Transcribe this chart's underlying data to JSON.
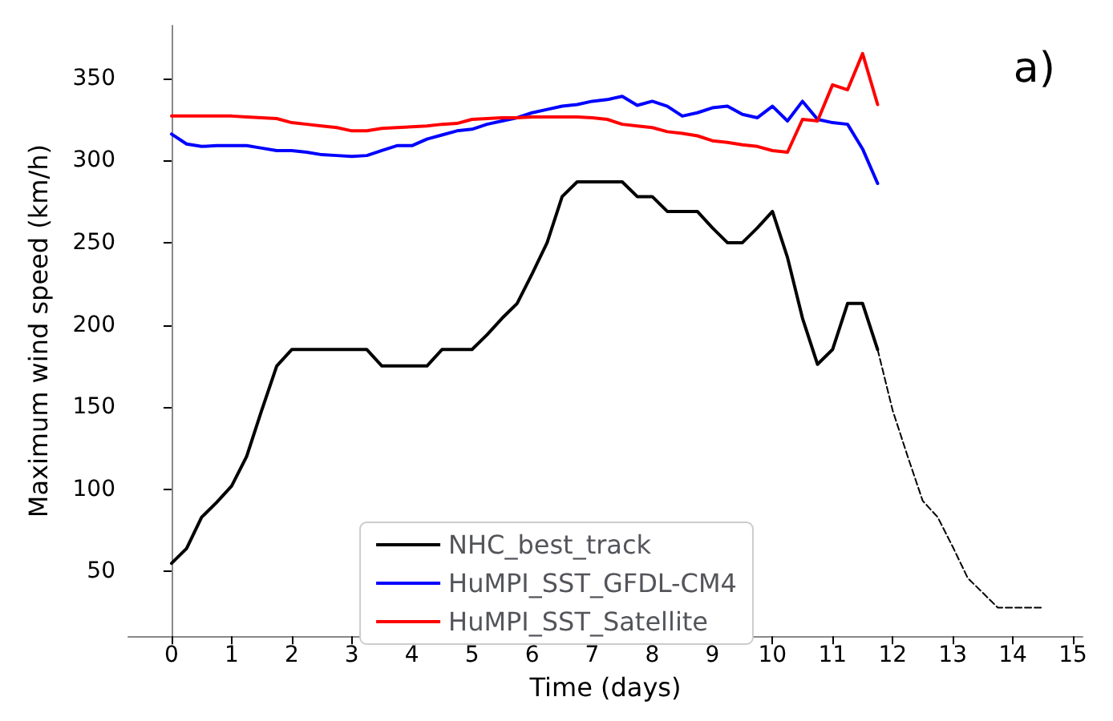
{
  "chart_data": {
    "type": "line",
    "xlabel": "Time (days)",
    "ylabel": "Maximum wind speed (km/h)",
    "annotations": [
      "a)"
    ],
    "xlim": [
      -0.72,
      15.16
    ],
    "xticks": [
      0,
      1,
      2,
      3,
      4,
      5,
      6,
      7,
      8,
      9,
      10,
      11,
      12,
      13,
      14,
      15
    ],
    "ylim": [
      10.6,
      382
    ],
    "yticks": [
      50,
      100,
      150,
      200,
      250,
      300,
      350
    ],
    "grid": false,
    "legend": "bottom",
    "marker": "none",
    "series": [
      {
        "name": "NHC_best_track",
        "color": "#000000",
        "line_style": "solid",
        "x": [
          0,
          0.25,
          0.5,
          0.75,
          1,
          1.25,
          1.5,
          1.75,
          2,
          2.25,
          2.5,
          2.75,
          3,
          3.25,
          3.5,
          3.75,
          4,
          4.25,
          4.5,
          4.75,
          5,
          5.25,
          5.5,
          5.75,
          6,
          6.25,
          6.5,
          6.75,
          7,
          7.25,
          7.5,
          7.75,
          8,
          8.25,
          8.5,
          8.75,
          9,
          9.25,
          9.5,
          9.75,
          10,
          10.25,
          10.5,
          10.75,
          11,
          11.25,
          11.5,
          11.75
        ],
        "values": [
          55,
          64,
          83,
          92,
          102,
          120,
          148,
          175,
          185,
          185,
          185,
          185,
          185,
          185,
          175,
          175,
          175,
          175,
          185,
          185,
          185,
          194,
          204,
          213,
          231,
          250,
          278,
          287,
          287,
          287,
          287,
          278,
          278,
          269,
          269,
          269,
          259,
          250,
          250,
          259,
          269,
          241,
          204,
          176,
          185,
          213,
          213,
          185
        ]
      },
      {
        "name": "HuMPI_SST_GFDL-CM4",
        "color": "#0000ff",
        "line_style": "solid",
        "x": [
          0,
          0.25,
          0.5,
          0.75,
          1,
          1.25,
          1.5,
          1.75,
          2,
          2.25,
          2.5,
          2.75,
          3,
          3.25,
          3.5,
          3.75,
          4,
          4.25,
          4.5,
          4.75,
          5,
          5.25,
          5.5,
          5.75,
          6,
          6.25,
          6.5,
          6.75,
          7,
          7.25,
          7.5,
          7.75,
          8,
          8.25,
          8.5,
          8.75,
          9,
          9.25,
          9.5,
          9.75,
          10,
          10.25,
          10.5,
          10.75,
          11,
          11.25,
          11.5,
          11.75
        ],
        "values": [
          316,
          310,
          308.5,
          309,
          309,
          309,
          307.5,
          306,
          306,
          305,
          303.5,
          303,
          302.5,
          303,
          306,
          309,
          309,
          313,
          315.5,
          318,
          319,
          322,
          324,
          326,
          329,
          331,
          333,
          334,
          336,
          337,
          339,
          333.5,
          336,
          333,
          327,
          329,
          332,
          333,
          328,
          326,
          333,
          324,
          336,
          325,
          323,
          322,
          307,
          286
        ]
      },
      {
        "name": "HuMPI_SST_Satellite",
        "color": "#ff0000",
        "line_style": "solid",
        "x": [
          0,
          0.25,
          0.5,
          0.75,
          1,
          1.25,
          1.5,
          1.75,
          2,
          2.25,
          2.5,
          2.75,
          3,
          3.25,
          3.5,
          3.75,
          4,
          4.25,
          4.5,
          4.75,
          5,
          5.25,
          5.5,
          5.75,
          6,
          6.25,
          6.5,
          6.75,
          7,
          7.25,
          7.5,
          7.75,
          8,
          8.25,
          8.5,
          8.75,
          9,
          9.25,
          9.5,
          9.75,
          10,
          10.25,
          10.5,
          10.75,
          11,
          11.25,
          11.5,
          11.75
        ],
        "values": [
          327,
          327,
          327,
          327,
          327,
          326.5,
          326,
          325.5,
          323,
          322,
          321,
          320,
          318,
          318,
          319.5,
          320,
          320.5,
          321,
          322,
          322.5,
          325,
          325.5,
          326,
          326,
          326.5,
          326.5,
          326.5,
          326.5,
          326,
          325,
          322,
          321,
          320,
          317.5,
          316.5,
          315,
          312,
          311,
          309.5,
          308.5,
          306,
          305,
          325,
          324,
          346,
          343,
          365,
          334
        ]
      },
      {
        "color": "#000000",
        "line_style": "dashed",
        "x": [
          11.75,
          12,
          12.25,
          12.5,
          12.75,
          13,
          13.25,
          13.5,
          13.75,
          14,
          14.25,
          14.5
        ],
        "values": [
          185,
          148,
          120,
          93,
          83,
          65,
          46,
          37,
          28,
          28,
          28,
          28
        ]
      }
    ]
  }
}
